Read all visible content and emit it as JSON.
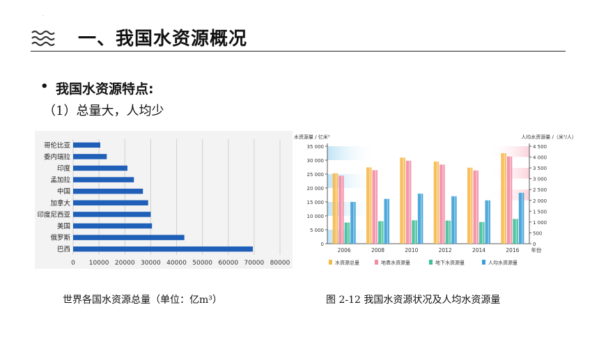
{
  "header": {
    "title": "一、我国水资源概况",
    "decor_dot": "·"
  },
  "content": {
    "bullet": "•",
    "point_title": "我国水资源特点:",
    "sub_point": "（1）总量大，人均少"
  },
  "captions": {
    "left": "世界各国水资源总量（单位：亿m³）",
    "right": "图 2-12   我国水资源状况及人均水资源量"
  },
  "chart_data": [
    {
      "type": "bar",
      "orientation": "horizontal",
      "categories": [
        "哥伦比亚",
        "委内瑞拉",
        "印度",
        "孟加拉",
        "中国",
        "加拿大",
        "印度尼西亚",
        "美国",
        "俄罗斯",
        "巴西"
      ],
      "values": [
        10500,
        13000,
        21000,
        23500,
        27000,
        29000,
        30000,
        30500,
        43000,
        69500
      ],
      "xlim": [
        0,
        80000
      ],
      "xticks": [
        "0",
        "10000",
        "20000",
        "30000",
        "40000",
        "50000",
        "60000",
        "70000",
        "80000"
      ],
      "grid": true,
      "color": "#1f5fb8"
    },
    {
      "type": "bar",
      "categories": [
        "2006",
        "2008",
        "2010",
        "2012",
        "2014",
        "2016"
      ],
      "series": [
        {
          "name": "水资源总量",
          "axis": "left",
          "color": "#f7b84a",
          "values": [
            25300,
            27400,
            30900,
            29500,
            27300,
            32500
          ]
        },
        {
          "name": "地表水资源量",
          "axis": "left",
          "color": "#f28ba4",
          "values": [
            24400,
            26400,
            29800,
            28400,
            26300,
            31300
          ]
        },
        {
          "name": "地下水资源量",
          "axis": "left",
          "color": "#3fbf9a",
          "values": [
            7600,
            8100,
            8400,
            8300,
            7800,
            8900
          ]
        },
        {
          "name": "人均水资源量",
          "axis": "right",
          "color": "#3a9fd6",
          "values": [
            1930,
            2070,
            2310,
            2190,
            2000,
            2350
          ]
        }
      ],
      "ylabel_left": "水资源量 / 亿米³",
      "ylabel_right": "人均水资源量 /（米³/人）",
      "xlabel_unit": "年份",
      "ylim_left": [
        0,
        35000
      ],
      "yticks_left": [
        "0",
        "5 000",
        "10 000",
        "15 000",
        "20 000",
        "25 000",
        "30 000",
        "35 000"
      ],
      "ylim_right": [
        0,
        4500
      ],
      "yticks_right": [
        "0",
        "500",
        "1 000",
        "1 500",
        "2 000",
        "2 500",
        "3 000",
        "3 500",
        "4 000",
        "4 500"
      ],
      "legend_position": "bottom"
    }
  ]
}
